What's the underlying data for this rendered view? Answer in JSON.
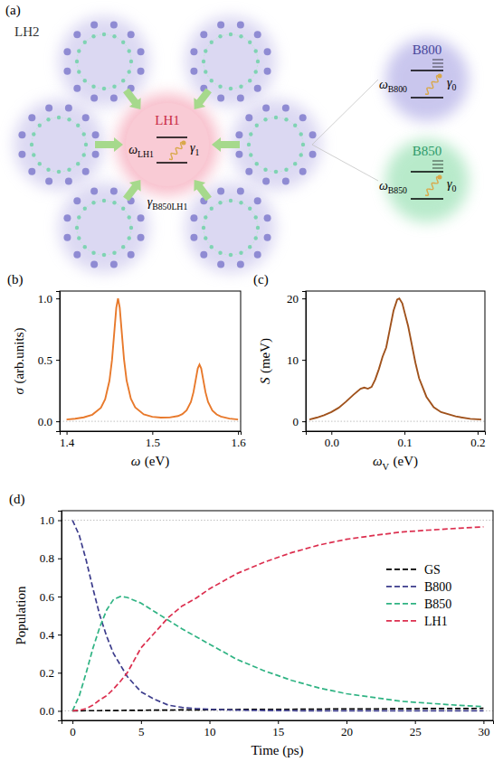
{
  "diagram": {
    "panel": "(a)",
    "complex": "LH2",
    "center": {
      "label": "LH1",
      "frequency": {
        "symbol": "ω",
        "subscript": "LH1"
      },
      "decay": {
        "symbol": "γ",
        "subscript": "1"
      }
    },
    "transfer": {
      "symbol": "γ",
      "subscript": "B850LH1"
    },
    "insets": [
      {
        "label": "B800",
        "frequency": {
          "symbol": "ω",
          "subscript": "B800"
        },
        "decay": {
          "symbol": "γ",
          "subscript": "0"
        }
      },
      {
        "label": "B850",
        "frequency": {
          "symbol": "ω",
          "subscript": "B850"
        },
        "decay": {
          "symbol": "γ",
          "subscript": "0"
        }
      }
    ]
  },
  "chart_data": [
    {
      "type": "line",
      "title": "(b)",
      "xlabel": {
        "symbol": "ω",
        "unit": "(eV)"
      },
      "ylabel": {
        "symbol": "σ",
        "unit": "(arb.units)"
      },
      "x": [
        1.4,
        1.41,
        1.42,
        1.43,
        1.44,
        1.445,
        1.45,
        1.453,
        1.456,
        1.458,
        1.46,
        1.462,
        1.464,
        1.467,
        1.47,
        1.475,
        1.48,
        1.49,
        1.5,
        1.51,
        1.52,
        1.53,
        1.535,
        1.54,
        1.545,
        1.548,
        1.551,
        1.553,
        1.555,
        1.557,
        1.559,
        1.562,
        1.565,
        1.57,
        1.575,
        1.58,
        1.59,
        1.6
      ],
      "values": [
        0.015,
        0.021,
        0.032,
        0.054,
        0.11,
        0.18,
        0.33,
        0.5,
        0.755,
        0.925,
        1.0,
        0.925,
        0.756,
        0.503,
        0.333,
        0.183,
        0.113,
        0.057,
        0.037,
        0.03,
        0.031,
        0.043,
        0.059,
        0.09,
        0.158,
        0.237,
        0.353,
        0.431,
        0.462,
        0.431,
        0.353,
        0.237,
        0.157,
        0.088,
        0.056,
        0.038,
        0.022,
        0.015
      ],
      "color": "#e8792b",
      "line_style": "solid",
      "xlim": [
        1.392,
        1.603
      ],
      "xticks": [
        1.4,
        1.5,
        1.6
      ],
      "ylim": [
        -0.08,
        1.06
      ],
      "yticks": [
        {
          "value": 0,
          "label": "0.0"
        },
        {
          "value": 0.5,
          "label": "0.5"
        },
        {
          "value": 1,
          "label": "1.0"
        }
      ],
      "reference_lines": [
        0
      ],
      "grid": false
    },
    {
      "type": "line",
      "title": "(c)",
      "xlabel": {
        "symbol": "ω",
        "subscript": "V",
        "unit": "(eV)"
      },
      "ylabel": {
        "symbol": "S",
        "unit": "(meV)"
      },
      "x": [
        -0.03,
        -0.02,
        -0.01,
        0,
        0.01,
        0.02,
        0.03,
        0.04,
        0.045,
        0.05,
        0.055,
        0.06,
        0.065,
        0.07,
        0.075,
        0.08,
        0.085,
        0.09,
        0.093,
        0.097,
        0.1,
        0.105,
        0.11,
        0.115,
        0.12,
        0.13,
        0.14,
        0.15,
        0.17,
        0.19,
        0.205
      ],
      "values": [
        0.3,
        0.6,
        1.0,
        1.5,
        2.2,
        3.2,
        4.3,
        5.3,
        5.5,
        5.3,
        5.6,
        6.8,
        8.5,
        10.5,
        12.0,
        15.0,
        18.0,
        19.8,
        20.0,
        19.2,
        17.8,
        15.5,
        12.5,
        9.5,
        7.0,
        4.0,
        2.3,
        1.5,
        0.8,
        0.4,
        0.3
      ],
      "color": "#a0521c",
      "line_style": "solid",
      "xlim": [
        -0.035,
        0.21
      ],
      "xticks": [
        {
          "value": 0,
          "label": "0.0"
        },
        0.1,
        0.2
      ],
      "ylim": [
        -1.6,
        21.2
      ],
      "yticks": [
        0,
        10,
        20
      ],
      "reference_lines": [
        0
      ],
      "grid": false
    },
    {
      "type": "line",
      "title": "(d)",
      "xlabel": "Time (ps)",
      "ylabel": "Population",
      "x": [
        0,
        0.5,
        1,
        1.5,
        2,
        2.5,
        3,
        3.5,
        4,
        5,
        6,
        7,
        8,
        9,
        10,
        12,
        14,
        16,
        18,
        20,
        22,
        24,
        26,
        28,
        30
      ],
      "series": [
        {
          "name": "GS",
          "color": "#000000",
          "line_style": "dashed",
          "values": [
            0,
            0,
            0.001,
            0.001,
            0.001,
            0.002,
            0.002,
            0.002,
            0.003,
            0.003,
            0.004,
            0.004,
            0.005,
            0.005,
            0.006,
            0.007,
            0.008,
            0.008,
            0.009,
            0.01,
            0.01,
            0.011,
            0.012,
            0.012,
            0.013
          ]
        },
        {
          "name": "B800",
          "color": "#3d3d8c",
          "line_style": "dashed",
          "values": [
            1.0,
            0.92,
            0.79,
            0.64,
            0.5,
            0.39,
            0.3,
            0.24,
            0.18,
            0.1,
            0.06,
            0.03,
            0.018,
            0.012,
            0.008,
            0.004,
            0.002,
            0.001,
            0,
            0,
            0,
            0,
            0,
            0,
            0
          ]
        },
        {
          "name": "B850",
          "color": "#2fb383",
          "line_style": "dashed",
          "values": [
            0,
            0.08,
            0.2,
            0.33,
            0.44,
            0.53,
            0.585,
            0.6,
            0.595,
            0.565,
            0.52,
            0.475,
            0.43,
            0.39,
            0.35,
            0.27,
            0.21,
            0.16,
            0.12,
            0.09,
            0.07,
            0.05,
            0.04,
            0.03,
            0.022
          ]
        },
        {
          "name": "LH1",
          "color": "#dc2f4f",
          "line_style": "dashed",
          "values": [
            0,
            0.003,
            0.012,
            0.03,
            0.058,
            0.08,
            0.115,
            0.155,
            0.2,
            0.33,
            0.41,
            0.49,
            0.55,
            0.59,
            0.64,
            0.72,
            0.78,
            0.83,
            0.87,
            0.9,
            0.92,
            0.938,
            0.948,
            0.957,
            0.965
          ]
        }
      ],
      "xlim": [
        -0.8,
        30.7
      ],
      "xticks": [
        0,
        5,
        10,
        15,
        20,
        25,
        30
      ],
      "ylim": [
        -0.05,
        1.05
      ],
      "yticks": [
        {
          "value": 0,
          "label": "0.0"
        },
        0.2,
        0.4,
        0.6,
        0.8,
        {
          "value": 1,
          "label": "1.0"
        }
      ],
      "reference_lines": [
        0,
        1
      ],
      "legend": "right",
      "grid": false
    }
  ]
}
